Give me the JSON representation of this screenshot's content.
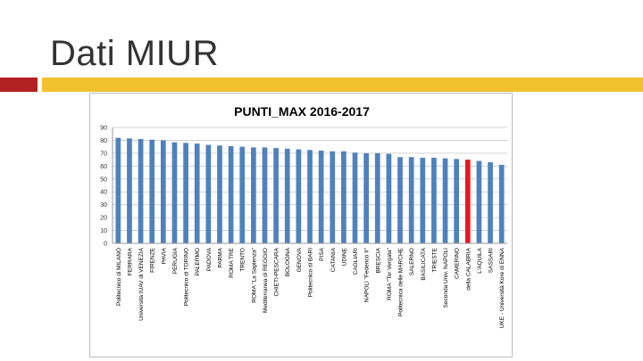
{
  "slide": {
    "title": "Dati MIUR"
  },
  "colors": {
    "accent_red": "#b22222",
    "accent_gold": "#f2c12e",
    "bar_default": "#4f81bd",
    "bar_highlight": "#e41a1c",
    "title_text": "#333333"
  },
  "chart_data": {
    "type": "bar",
    "title": "PUNTI_MAX 2016-2017",
    "xlabel": "",
    "ylabel": "",
    "ylim": [
      0,
      90
    ],
    "yticks": [
      0,
      10,
      20,
      30,
      40,
      50,
      60,
      70,
      80,
      90
    ],
    "grid": true,
    "highlight_index": 31,
    "categories": [
      "Politecnico di MILANO",
      "FERRARA",
      "Università IUAV di VENEZIA",
      "FIRENZE",
      "PAVIA",
      "PERUGIA",
      "Politecnico di TORINO",
      "PALERMO",
      "PADOVA",
      "PARMA",
      "ROMA TRE",
      "TRENTO",
      "ROMA \"La Sapienza\"",
      "Mediterranea di REGGIO",
      "CHIETI-PESCARA",
      "BOLOGNA",
      "GENOVA",
      "Politecnico di BARI",
      "PISA",
      "CATANIA",
      "UDINE",
      "CAGLIARI",
      "NAPOLI \"Federico II\"",
      "BRESCIA",
      "ROMA \"Tor Vergata\"",
      "Politecnica delle MARCHE",
      "SALERNO",
      "BASILICATA",
      "TRIESTE",
      "Seconda Univ. NAPOLI",
      "CAMERINO",
      "della CALABRIA",
      "L'AQUILA",
      "SASSARI",
      "UKE - Università Kore di ENNA"
    ],
    "values": [
      82,
      81.5,
      81,
      80.5,
      80,
      78.5,
      78,
      77.5,
      76.5,
      76,
      75.5,
      75,
      74.5,
      74.5,
      74,
      73.5,
      73,
      72.5,
      72,
      71.5,
      71.5,
      70.5,
      70,
      70,
      69.5,
      67,
      67,
      66.5,
      66.5,
      66,
      65.5,
      65,
      64,
      63,
      61
    ]
  }
}
